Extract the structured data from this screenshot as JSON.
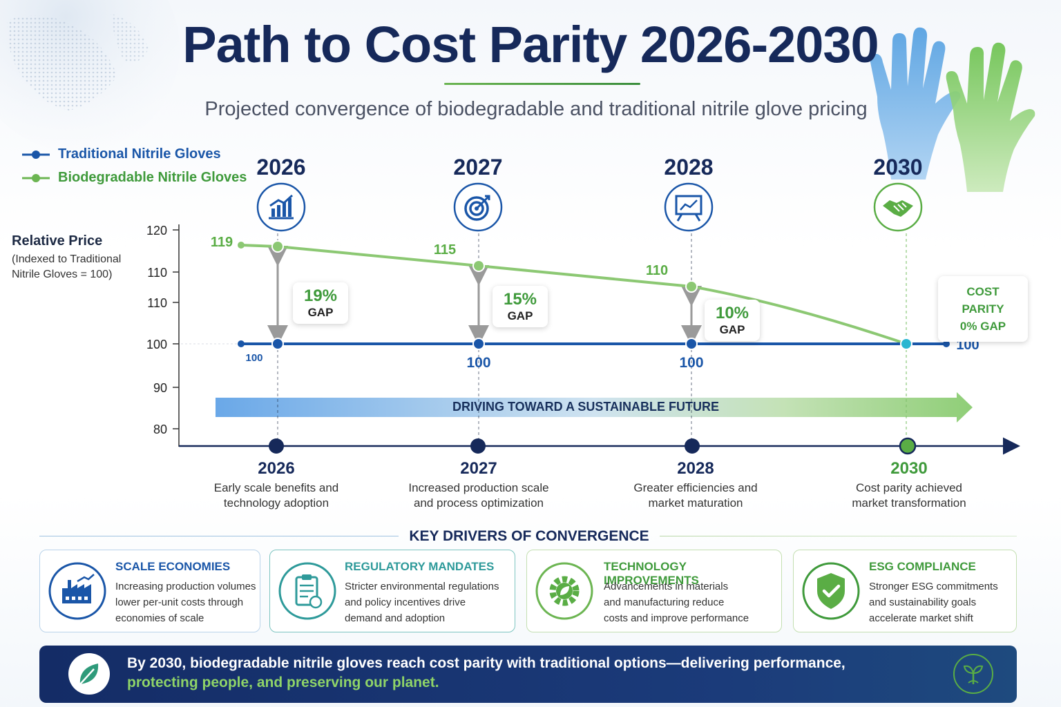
{
  "title": "Path to Cost Parity 2026-2030",
  "subtitle": "Projected convergence of biodegradable and traditional nitrile glove pricing",
  "legend": {
    "traditional": "Traditional Nitrile Gloves",
    "biodegradable": "Biodegradable Nitrile Gloves"
  },
  "y_axis": {
    "title": "Relative Price",
    "note": "(Indexed to Traditional Nitrile Gloves = 100)"
  },
  "colors": {
    "traditional": "#1a56a8",
    "biodegradable": "#6cb552",
    "navy": "#16295a",
    "accent_green": "#3f9a3b"
  },
  "chart_data": {
    "type": "line",
    "title": "Path to Cost Parity 2026-2030",
    "subtitle": "Projected convergence of biodegradable and traditional nitrile glove pricing",
    "ylabel": "Relative Price",
    "ylabel_note": "(Indexed to Traditional Nitrile Gloves = 100)",
    "x": [
      "2026",
      "2027",
      "2028",
      "2030"
    ],
    "y_ticks": [
      "120",
      "110",
      "110",
      "100",
      "90",
      "80"
    ],
    "legend_position": "top-left",
    "grid": false,
    "series": [
      {
        "name": "Traditional Nitrile Gloves",
        "values": [
          100,
          100,
          100,
          100
        ],
        "labels": [
          "100",
          "100",
          "100",
          "100"
        ]
      },
      {
        "name": "Biodegradable Nitrile Gloves",
        "values": [
          119,
          115,
          110,
          100
        ],
        "labels": [
          "119",
          "115",
          "110",
          ""
        ]
      }
    ],
    "gaps": [
      {
        "year": "2026",
        "pct": "19%",
        "label": "GAP"
      },
      {
        "year": "2027",
        "pct": "15%",
        "label": "GAP"
      },
      {
        "year": "2028",
        "pct": "10%",
        "label": "GAP"
      }
    ],
    "parity": {
      "year": "2030",
      "line1": "COST PARITY",
      "line2": "0% GAP"
    },
    "header_years": [
      "2026",
      "2027",
      "2028",
      "2030"
    ],
    "header_icons": [
      "growth-chart-icon",
      "target-icon",
      "presentation-board-icon",
      "handshake-icon"
    ],
    "band_label": "DRIVING TOWARD A SUSTAINABLE FUTURE"
  },
  "milestones": [
    {
      "year": "2026",
      "desc1": "Early scale benefits and",
      "desc2": "technology adoption"
    },
    {
      "year": "2027",
      "desc1": "Increased production scale",
      "desc2": "and process optimization"
    },
    {
      "year": "2028",
      "desc1": "Greater efficiencies and",
      "desc2": "market maturation"
    },
    {
      "year": "2030",
      "desc1": "Cost parity achieved",
      "desc2": "market transformation"
    }
  ],
  "drivers": {
    "title": "KEY DRIVERS OF CONVERGENCE",
    "cards": [
      {
        "title": "SCALE ECONOMIES",
        "l1": "Increasing production volumes",
        "l2": "lower per-unit costs through",
        "l3": "economies of scale",
        "icon": "factory-icon"
      },
      {
        "title": "REGULATORY MANDATES",
        "l1": "Stricter environmental regulations",
        "l2": "and policy incentives drive",
        "l3": "demand and adoption",
        "icon": "clipboard-icon"
      },
      {
        "title": "TECHNOLOGY IMPROVEMENTS",
        "l1": "Advancements in materials",
        "l2": "and manufacturing reduce",
        "l3": "costs and improve performance",
        "icon": "gear-leaf-icon"
      },
      {
        "title": "ESG COMPLIANCE",
        "l1": "Stronger ESG commitments",
        "l2": "and sustainability goals",
        "l3": "accelerate market shift",
        "icon": "shield-check-icon"
      }
    ]
  },
  "banner": {
    "line1": "By 2030, biodegradable nitrile gloves reach cost parity with traditional options—delivering performance,",
    "line2": "protecting people, and preserving our planet.",
    "left_icon": "leaf-icon",
    "right_icon": "sprout-icon"
  }
}
